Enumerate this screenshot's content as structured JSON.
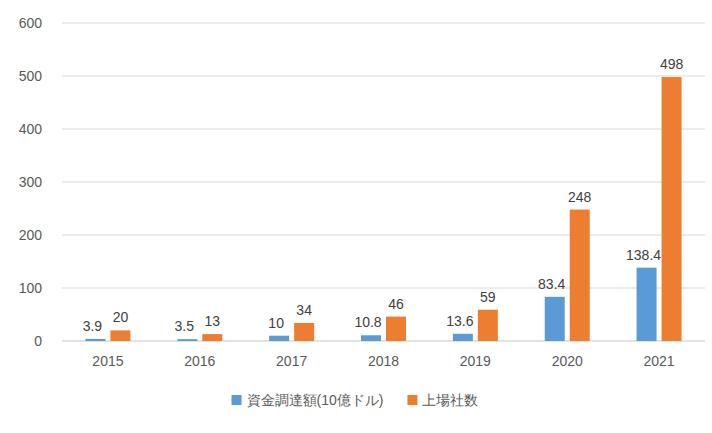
{
  "chart_data": {
    "type": "bar",
    "categories": [
      "2015",
      "2016",
      "2017",
      "2018",
      "2019",
      "2020",
      "2021"
    ],
    "series": [
      {
        "name": "資金調達額(10億ドル)",
        "color": "#5b9bd5",
        "values": [
          3.9,
          3.5,
          10,
          10.8,
          13.6,
          83.4,
          138.4
        ]
      },
      {
        "name": "上場社数",
        "color": "#ed7d31",
        "values": [
          20,
          13,
          34,
          46,
          59,
          248,
          498
        ]
      }
    ],
    "ylim": [
      0,
      600
    ],
    "yticks": [
      0,
      100,
      200,
      300,
      400,
      500,
      600
    ],
    "grid": true,
    "data_labels": true,
    "legend": "bottom"
  }
}
